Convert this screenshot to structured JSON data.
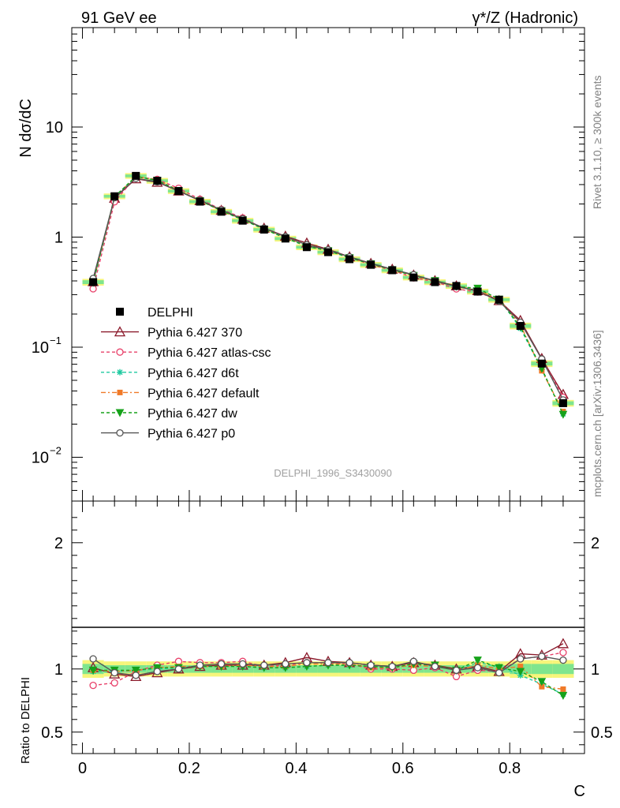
{
  "header": {
    "left": "91 GeV ee",
    "right": "γ*/Z (Hadronic)"
  },
  "side_labels": {
    "rivet": "Rivet 3.1.10, ≥ 300k events",
    "mcplots": "mcplots.cern.ch [arXiv:1306.3436]"
  },
  "analysis_label": "DELPHI_1996_S3430090",
  "chart_data": {
    "type": "line",
    "main": {
      "ylabel": "N dσ/dC",
      "yscale": "log",
      "ylim": [
        0.004,
        80
      ],
      "yticks": [
        {
          "value": 0.01,
          "base": "10",
          "exp": "−2"
        },
        {
          "value": 0.1,
          "base": "10",
          "exp": "−1"
        },
        {
          "value": 1,
          "label": "1"
        },
        {
          "value": 10,
          "label": "10"
        }
      ]
    },
    "ratio": {
      "ylabel": "Ratio to DELPHI",
      "ylim": [
        0.33,
        2.33
      ],
      "yticks": [
        {
          "value": 0.5,
          "label": "0.5"
        },
        {
          "value": 1,
          "label": "1"
        },
        {
          "value": 2,
          "label": "2"
        }
      ]
    },
    "xlabel": "C",
    "xlim": [
      -0.02,
      0.94
    ],
    "xticks": [
      {
        "value": 0,
        "label": "0"
      },
      {
        "value": 0.2,
        "label": "0.2"
      },
      {
        "value": 0.4,
        "label": "0.4"
      },
      {
        "value": 0.6,
        "label": "0.6"
      },
      {
        "value": 0.8,
        "label": "0.8"
      }
    ],
    "x": [
      0.02,
      0.06,
      0.1,
      0.14,
      0.18,
      0.22,
      0.26,
      0.3,
      0.34,
      0.38,
      0.42,
      0.46,
      0.5,
      0.54,
      0.58,
      0.62,
      0.66,
      0.7,
      0.74,
      0.78,
      0.82,
      0.86,
      0.9
    ],
    "data": {
      "name": "DELPHI",
      "values": [
        0.39,
        2.35,
        3.6,
        3.25,
        2.62,
        2.1,
        1.7,
        1.41,
        1.17,
        0.97,
        0.81,
        0.73,
        0.63,
        0.56,
        0.5,
        0.43,
        0.39,
        0.36,
        0.32,
        0.27,
        0.156,
        0.071,
        0.031
      ]
    },
    "uncertainty_bands": {
      "inner_half_width": [
        0.04,
        0.03,
        0.03,
        0.03,
        0.03,
        0.03,
        0.03,
        0.03,
        0.03,
        0.03,
        0.03,
        0.03,
        0.03,
        0.03,
        0.03,
        0.03,
        0.03,
        0.03,
        0.03,
        0.03,
        0.04,
        0.04,
        0.04
      ],
      "outer_half_width": [
        0.07,
        0.06,
        0.06,
        0.06,
        0.06,
        0.06,
        0.06,
        0.06,
        0.06,
        0.06,
        0.06,
        0.06,
        0.06,
        0.06,
        0.06,
        0.06,
        0.06,
        0.06,
        0.06,
        0.06,
        0.07,
        0.07,
        0.07
      ],
      "inner_color": "#7fe58e",
      "outer_color": "#f6f57a"
    },
    "series": [
      {
        "name": "Pythia 6.427 370",
        "color": "#8b1a2b",
        "dash": "",
        "marker": "triangle-open",
        "ratio": [
          1.01,
          0.96,
          0.94,
          0.97,
          1.0,
          1.02,
          1.03,
          1.03,
          1.03,
          1.05,
          1.09,
          1.06,
          1.05,
          1.03,
          1.02,
          1.05,
          1.03,
          1.0,
          1.02,
          0.98,
          1.12,
          1.11,
          1.2
        ]
      },
      {
        "name": "Pythia 6.427 atlas-csc",
        "color": "#e8416a",
        "dash": "4,3",
        "marker": "circle-open",
        "ratio": [
          0.87,
          0.89,
          0.98,
          1.03,
          1.06,
          1.05,
          1.05,
          1.06,
          1.02,
          1.03,
          1.05,
          1.05,
          1.04,
          1.0,
          1.0,
          0.99,
          1.01,
          0.94,
          0.99,
          0.98,
          1.08,
          1.1,
          1.13
        ]
      },
      {
        "name": "Pythia 6.427 d6t",
        "color": "#1ec9a0",
        "dash": "4,3",
        "marker": "star",
        "ratio": [
          0.98,
          0.98,
          0.99,
          1.0,
          1.01,
          1.02,
          1.02,
          1.02,
          1.01,
          1.01,
          1.02,
          1.03,
          1.03,
          1.02,
          1.01,
          1.04,
          1.02,
          0.99,
          1.05,
          1.02,
          0.95,
          0.88,
          0.8
        ]
      },
      {
        "name": "Pythia 6.427 default",
        "color": "#f07a28",
        "dash": "6,3,2,3",
        "marker": "square",
        "ratio": [
          0.99,
          0.98,
          0.99,
          1.01,
          1.02,
          1.02,
          1.02,
          1.03,
          1.02,
          1.02,
          1.04,
          1.04,
          1.04,
          1.01,
          1.01,
          1.03,
          1.02,
          0.99,
          1.03,
          1.0,
          1.02,
          0.86,
          0.84
        ]
      },
      {
        "name": "Pythia 6.427 dw",
        "color": "#16a21a",
        "dash": "4,3",
        "marker": "triangle-down",
        "ratio": [
          0.99,
          0.99,
          0.99,
          1.01,
          1.01,
          1.02,
          1.02,
          1.02,
          1.01,
          1.01,
          1.02,
          1.03,
          1.03,
          1.02,
          1.01,
          1.04,
          1.03,
          0.99,
          1.07,
          1.01,
          0.98,
          0.9,
          0.79
        ]
      },
      {
        "name": "Pythia 6.427 p0",
        "color": "#555555",
        "dash": "",
        "marker": "circle-open",
        "ratio": [
          1.08,
          0.97,
          0.95,
          0.98,
          1.0,
          1.03,
          1.04,
          1.04,
          1.03,
          1.04,
          1.05,
          1.05,
          1.05,
          1.03,
          1.02,
          1.06,
          1.02,
          0.99,
          1.01,
          0.97,
          1.08,
          1.1,
          1.07
        ]
      }
    ]
  }
}
